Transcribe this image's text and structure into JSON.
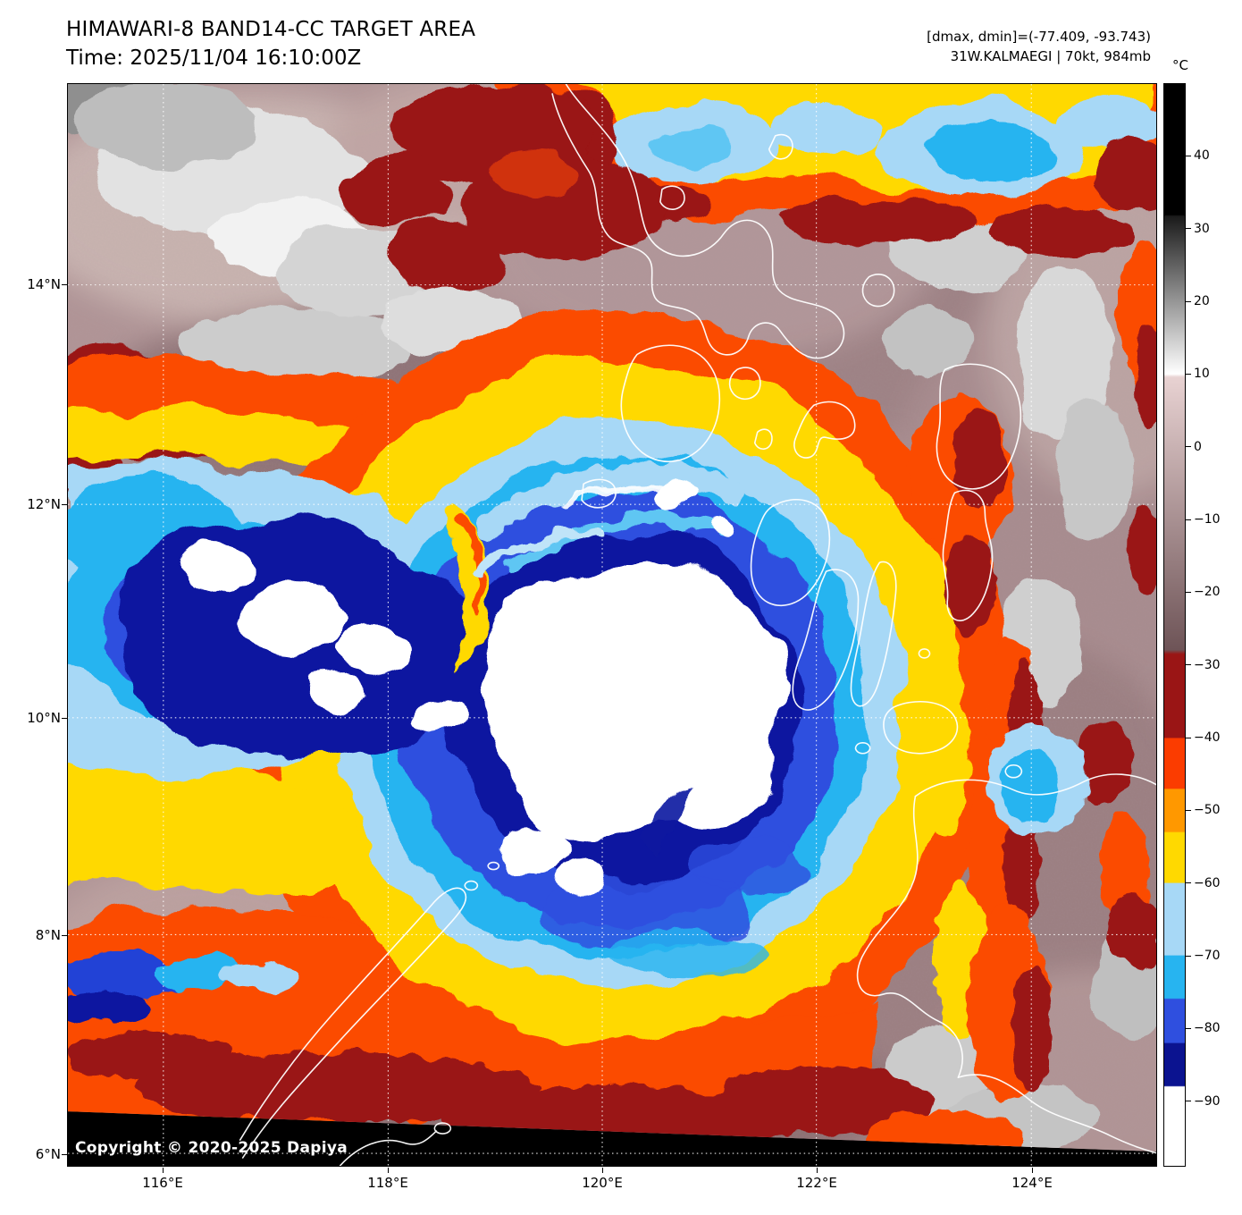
{
  "header": {
    "title": "HIMAWARI-8 BAND14-CC TARGET AREA",
    "time_line": "Time: 2025/11/04 16:10:00Z",
    "range_line": "[dmax, dmin]=(-77.409, -93.743)",
    "storm_line": "31W.KALMAEGI | 70kt, 984mb"
  },
  "storm": {
    "id": "31W",
    "name": "KALMAEGI",
    "intensity_kt": 70,
    "pressure_mb": 984,
    "dmax_c": -77.409,
    "dmin_c": -93.743,
    "time_utc": "2025/11/04 16:10:00Z",
    "satellite": "HIMAWARI-8",
    "band": "BAND14-CC"
  },
  "colorbar": {
    "unit": "°C",
    "domain": [
      50,
      -99
    ],
    "ticks": [
      40,
      30,
      20,
      10,
      0,
      -10,
      -20,
      -30,
      -40,
      -50,
      -60,
      -70,
      -80,
      -90
    ],
    "stops": [
      {
        "t": 0.0,
        "c": "#000000"
      },
      {
        "t": 0.121,
        "c": "#000000"
      },
      {
        "t": 0.122,
        "c": "#1a1a1a"
      },
      {
        "t": 0.268,
        "c": "#ffffff"
      },
      {
        "t": 0.271,
        "c": "#e8d2d2"
      },
      {
        "t": 0.523,
        "c": "#6e5457"
      },
      {
        "t": 0.527,
        "c": "#9a1515"
      },
      {
        "t": 0.604,
        "c": "#9a1515"
      },
      {
        "t": 0.605,
        "c": "#fb3c00"
      },
      {
        "t": 0.651,
        "c": "#fb3c00"
      },
      {
        "t": 0.652,
        "c": "#ff9800"
      },
      {
        "t": 0.691,
        "c": "#ff9800"
      },
      {
        "t": 0.692,
        "c": "#ffd900"
      },
      {
        "t": 0.738,
        "c": "#ffd900"
      },
      {
        "t": 0.739,
        "c": "#a7d8f6"
      },
      {
        "t": 0.805,
        "c": "#a7d8f6"
      },
      {
        "t": 0.806,
        "c": "#27b4f0"
      },
      {
        "t": 0.845,
        "c": "#27b4f0"
      },
      {
        "t": 0.846,
        "c": "#2f4fdf"
      },
      {
        "t": 0.886,
        "c": "#2f4fdf"
      },
      {
        "t": 0.887,
        "c": "#0b1390"
      },
      {
        "t": 0.926,
        "c": "#0b1390"
      },
      {
        "t": 0.927,
        "c": "#ffffff"
      },
      {
        "t": 1.0,
        "c": "#ffffff"
      }
    ]
  },
  "axes": {
    "lat_labels": [
      "14°N",
      "12°N",
      "10°N",
      "8°N",
      "6°N"
    ],
    "lon_labels": [
      "116°E",
      "118°E",
      "120°E",
      "122°E",
      "124°E"
    ]
  },
  "copyright": "Copyright © 2020-2025 Dapiya"
}
